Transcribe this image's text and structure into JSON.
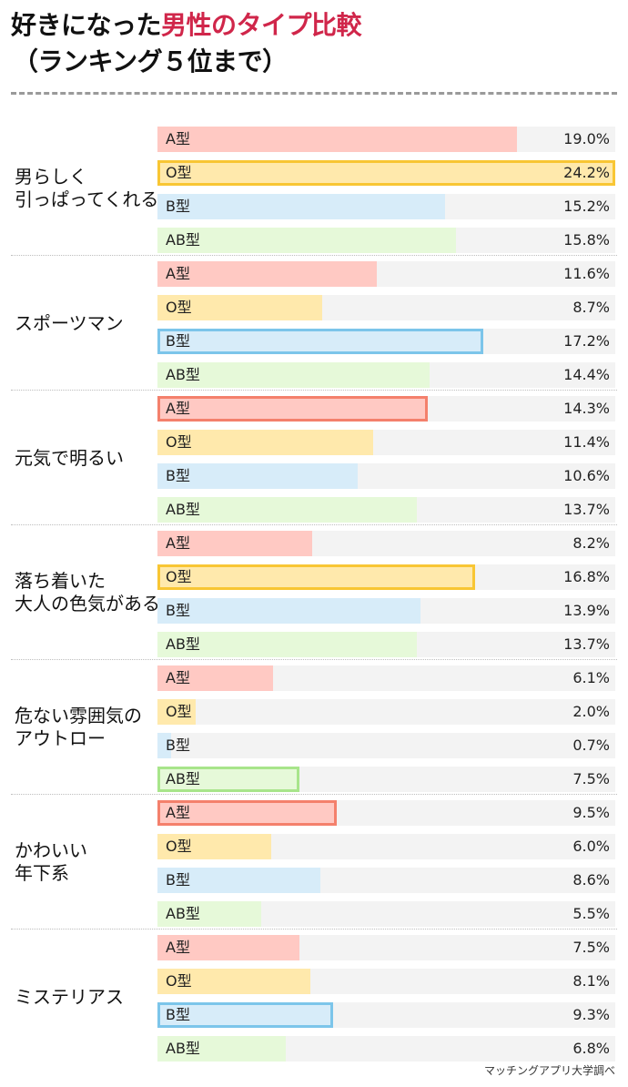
{
  "header": {
    "title_plain": "好きになった",
    "title_accent": "男性のタイプ比較",
    "subtitle": "（ランキング５位まで）"
  },
  "colors": {
    "accent": "#d0264a",
    "A": {
      "fill": "#ffc9c3",
      "border": "#f4806c"
    },
    "O": {
      "fill": "#ffe9ac",
      "border": "#f8c634"
    },
    "B": {
      "fill": "#d7ecf9",
      "border": "#7cc5ea"
    },
    "AB": {
      "fill": "#e6f9d9",
      "border": "#a8e58b"
    },
    "track": "#f3f3f3"
  },
  "source": "マッチングアプリ大学調べ",
  "chart_data": {
    "type": "bar",
    "orientation": "horizontal",
    "title": "好きになった男性のタイプ比較（ランキング５位まで）",
    "unit": "%",
    "categories": [
      "男らしく引っぱってくれる",
      "スポーツマン",
      "元気で明るい",
      "落ち着いた大人の色気がある",
      "危ない雰囲気のアウトロー",
      "かわいい年下系",
      "ミステリアス"
    ],
    "series": [
      {
        "name": "A型",
        "values": [
          19.0,
          11.6,
          14.3,
          8.2,
          6.1,
          9.5,
          7.5
        ]
      },
      {
        "name": "O型",
        "values": [
          24.2,
          8.7,
          11.4,
          16.8,
          2.0,
          6.0,
          8.1
        ]
      },
      {
        "name": "B型",
        "values": [
          15.2,
          17.2,
          10.6,
          13.9,
          0.7,
          8.6,
          9.3
        ]
      },
      {
        "name": "AB型",
        "values": [
          15.8,
          14.4,
          13.7,
          13.7,
          7.5,
          5.5,
          6.8
        ]
      }
    ],
    "highlighted": [
      "O型",
      "B型",
      "A型",
      "O型",
      "AB型",
      "A型",
      "B型"
    ],
    "xlim": [
      0,
      24.2
    ],
    "source": "マッチングアプリ大学調べ"
  },
  "sections": [
    {
      "label_lines": [
        "男らしく",
        "引っぱってくれる"
      ],
      "rows": [
        {
          "type": "A",
          "label": "A型",
          "value": 19.0,
          "text": "19.0%",
          "hl": false
        },
        {
          "type": "O",
          "label": "O型",
          "value": 24.2,
          "text": "24.2%",
          "hl": true
        },
        {
          "type": "B",
          "label": "B型",
          "value": 15.2,
          "text": "15.2%",
          "hl": false
        },
        {
          "type": "AB",
          "label": "AB型",
          "value": 15.8,
          "text": "15.8%",
          "hl": false
        }
      ]
    },
    {
      "label_lines": [
        "スポーツマン"
      ],
      "rows": [
        {
          "type": "A",
          "label": "A型",
          "value": 11.6,
          "text": "11.6%",
          "hl": false
        },
        {
          "type": "O",
          "label": "O型",
          "value": 8.7,
          "text": "8.7%",
          "hl": false
        },
        {
          "type": "B",
          "label": "B型",
          "value": 17.2,
          "text": "17.2%",
          "hl": true
        },
        {
          "type": "AB",
          "label": "AB型",
          "value": 14.4,
          "text": "14.4%",
          "hl": false
        }
      ]
    },
    {
      "label_lines": [
        "元気で明るい"
      ],
      "rows": [
        {
          "type": "A",
          "label": "A型",
          "value": 14.3,
          "text": "14.3%",
          "hl": true
        },
        {
          "type": "O",
          "label": "O型",
          "value": 11.4,
          "text": "11.4%",
          "hl": false
        },
        {
          "type": "B",
          "label": "B型",
          "value": 10.6,
          "text": "10.6%",
          "hl": false
        },
        {
          "type": "AB",
          "label": "AB型",
          "value": 13.7,
          "text": "13.7%",
          "hl": false
        }
      ]
    },
    {
      "label_lines": [
        "落ち着いた",
        "大人の色気がある"
      ],
      "rows": [
        {
          "type": "A",
          "label": "A型",
          "value": 8.2,
          "text": "8.2%",
          "hl": false
        },
        {
          "type": "O",
          "label": "O型",
          "value": 16.8,
          "text": "16.8%",
          "hl": true
        },
        {
          "type": "B",
          "label": "B型",
          "value": 13.9,
          "text": "13.9%",
          "hl": false
        },
        {
          "type": "AB",
          "label": "AB型",
          "value": 13.7,
          "text": "13.7%",
          "hl": false
        }
      ]
    },
    {
      "label_lines": [
        "危ない雰囲気の",
        "アウトロー"
      ],
      "rows": [
        {
          "type": "A",
          "label": "A型",
          "value": 6.1,
          "text": "6.1%",
          "hl": false
        },
        {
          "type": "O",
          "label": "O型",
          "value": 2.0,
          "text": "2.0%",
          "hl": false
        },
        {
          "type": "B",
          "label": "B型",
          "value": 0.7,
          "text": "0.7%",
          "hl": false
        },
        {
          "type": "AB",
          "label": "AB型",
          "value": 7.5,
          "text": "7.5%",
          "hl": true
        }
      ]
    },
    {
      "label_lines": [
        "かわいい",
        "年下系"
      ],
      "rows": [
        {
          "type": "A",
          "label": "A型",
          "value": 9.5,
          "text": "9.5%",
          "hl": true
        },
        {
          "type": "O",
          "label": "O型",
          "value": 6.0,
          "text": "6.0%",
          "hl": false
        },
        {
          "type": "B",
          "label": "B型",
          "value": 8.6,
          "text": "8.6%",
          "hl": false
        },
        {
          "type": "AB",
          "label": "AB型",
          "value": 5.5,
          "text": "5.5%",
          "hl": false
        }
      ]
    },
    {
      "label_lines": [
        "ミステリアス"
      ],
      "rows": [
        {
          "type": "A",
          "label": "A型",
          "value": 7.5,
          "text": "7.5%",
          "hl": false
        },
        {
          "type": "O",
          "label": "O型",
          "value": 8.1,
          "text": "8.1%",
          "hl": false
        },
        {
          "type": "B",
          "label": "B型",
          "value": 9.3,
          "text": "9.3%",
          "hl": true
        },
        {
          "type": "AB",
          "label": "AB型",
          "value": 6.8,
          "text": "6.8%",
          "hl": false
        }
      ]
    }
  ]
}
